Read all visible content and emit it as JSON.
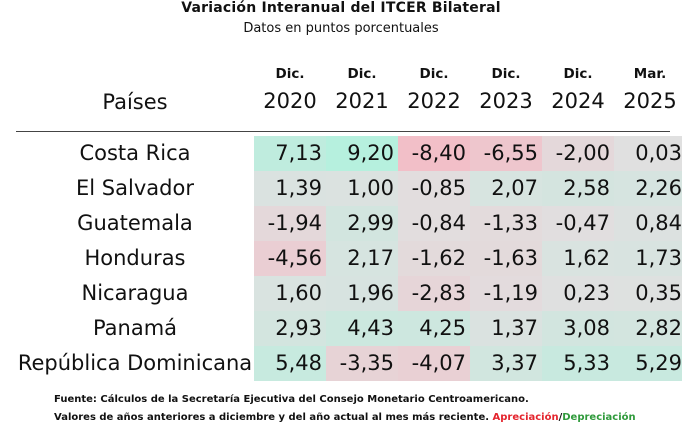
{
  "chart_data": {
    "type": "table",
    "title": "Variación Interanual del ITCER Bilateral",
    "subtitle": "Datos en puntos porcentuales",
    "row_header": "Países",
    "columns": [
      {
        "month": "Dic.",
        "year": "2020"
      },
      {
        "month": "Dic.",
        "year": "2021"
      },
      {
        "month": "Dic.",
        "year": "2022"
      },
      {
        "month": "Dic.",
        "year": "2023"
      },
      {
        "month": "Dic.",
        "year": "2024"
      },
      {
        "month": "Mar.",
        "year": "2025"
      }
    ],
    "rows": [
      {
        "country": "Costa Rica",
        "values": [
          "7,13",
          "9,20",
          "-8,40",
          "-6,55",
          "-2,00",
          "0,03"
        ]
      },
      {
        "country": "El Salvador",
        "values": [
          "1,39",
          "1,00",
          "-0,85",
          "2,07",
          "2,58",
          "2,26"
        ]
      },
      {
        "country": "Guatemala",
        "values": [
          "-1,94",
          "2,99",
          "-0,84",
          "-1,33",
          "-0,47",
          "0,84"
        ]
      },
      {
        "country": "Honduras",
        "values": [
          "-4,56",
          "2,17",
          "-1,62",
          "-1,63",
          "1,62",
          "1,73"
        ]
      },
      {
        "country": "Nicaragua",
        "values": [
          "1,60",
          "1,96",
          "-2,83",
          "-1,19",
          "0,23",
          "0,35"
        ]
      },
      {
        "country": "Panamá",
        "values": [
          "2,93",
          "4,43",
          "4,25",
          "1,37",
          "3,08",
          "2,82"
        ]
      },
      {
        "country": "República Dominicana",
        "values": [
          "5,48",
          "-3,35",
          "-4,07",
          "3,37",
          "5,33",
          "5,29"
        ]
      }
    ],
    "color_scale": {
      "min": -8.4,
      "max": 9.2,
      "negative_color": "#f2bfc8",
      "neutral_color": "#e0e0e0",
      "positive_color": "#b6f0de"
    }
  },
  "footnotes": {
    "source": "Fuente: Cálculos de la Secretaría Ejecutiva del Consejo Monetario Centroamericano.",
    "note": "Valores de años anteriores a diciembre y del año actual al mes más reciente. ",
    "apreciacion": "Apreciación",
    "separator": "/",
    "depreciacion": "Depreciación",
    "apreciacion_color": "#e4242d",
    "depreciacion_color": "#2f9a3b"
  }
}
